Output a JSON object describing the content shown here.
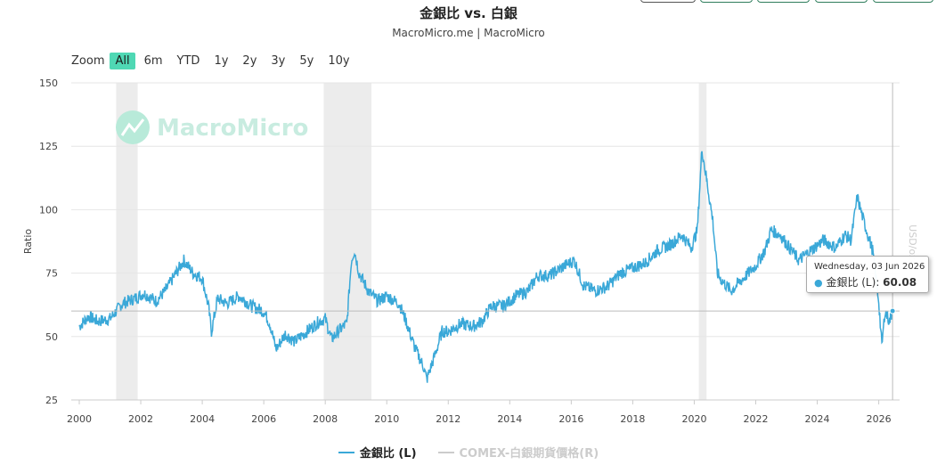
{
  "chart_data": {
    "type": "line",
    "title": "金銀比 vs. 白銀",
    "subtitle": "MacroMicro.me | MacroMicro",
    "ylabel": "Ratio",
    "ylabel_right": "USD/oz",
    "ylim": [
      25,
      150
    ],
    "xlim": [
      2000,
      2026.6
    ],
    "yticks": [
      "25",
      "50",
      "75",
      "100",
      "125",
      "150"
    ],
    "xticks": [
      "2000",
      "2002",
      "2004",
      "2006",
      "2008",
      "2010",
      "2012",
      "2014",
      "2016",
      "2018",
      "2020",
      "2022",
      "2024",
      "2026"
    ],
    "shaded_periods": [
      [
        2001.2,
        2001.9
      ],
      [
        2007.95,
        2009.5
      ],
      [
        2020.15,
        2020.4
      ]
    ],
    "series": [
      {
        "name": "金銀比 (L)",
        "color": "#3aa8d8",
        "points": [
          [
            2000.0,
            54
          ],
          [
            2000.3,
            58
          ],
          [
            2000.6,
            56
          ],
          [
            2001.0,
            57
          ],
          [
            2001.4,
            63
          ],
          [
            2001.8,
            65
          ],
          [
            2002.1,
            67
          ],
          [
            2002.5,
            64
          ],
          [
            2002.8,
            68
          ],
          [
            2003.1,
            74
          ],
          [
            2003.4,
            80
          ],
          [
            2003.7,
            75
          ],
          [
            2004.0,
            73
          ],
          [
            2004.2,
            62
          ],
          [
            2004.3,
            52
          ],
          [
            2004.5,
            65
          ],
          [
            2004.8,
            63
          ],
          [
            2005.2,
            66
          ],
          [
            2005.6,
            62
          ],
          [
            2006.0,
            60
          ],
          [
            2006.2,
            55
          ],
          [
            2006.4,
            45
          ],
          [
            2006.7,
            51
          ],
          [
            2007.0,
            48
          ],
          [
            2007.4,
            52
          ],
          [
            2007.8,
            56
          ],
          [
            2008.0,
            57
          ],
          [
            2008.2,
            49
          ],
          [
            2008.5,
            53
          ],
          [
            2008.7,
            55
          ],
          [
            2008.85,
            80
          ],
          [
            2008.95,
            84
          ],
          [
            2009.1,
            75
          ],
          [
            2009.4,
            68
          ],
          [
            2009.7,
            64
          ],
          [
            2010.0,
            66
          ],
          [
            2010.4,
            63
          ],
          [
            2010.6,
            57
          ],
          [
            2010.9,
            46
          ],
          [
            2011.2,
            38
          ],
          [
            2011.3,
            33
          ],
          [
            2011.6,
            44
          ],
          [
            2011.8,
            52
          ],
          [
            2012.0,
            52
          ],
          [
            2012.4,
            55
          ],
          [
            2012.8,
            54
          ],
          [
            2013.1,
            56
          ],
          [
            2013.4,
            62
          ],
          [
            2013.8,
            62
          ],
          [
            2014.2,
            66
          ],
          [
            2014.6,
            68
          ],
          [
            2014.9,
            74
          ],
          [
            2015.3,
            74
          ],
          [
            2015.8,
            78
          ],
          [
            2016.1,
            80
          ],
          [
            2016.4,
            70
          ],
          [
            2016.8,
            68
          ],
          [
            2017.2,
            70
          ],
          [
            2017.6,
            75
          ],
          [
            2018.0,
            77
          ],
          [
            2018.4,
            79
          ],
          [
            2018.8,
            84
          ],
          [
            2019.2,
            86
          ],
          [
            2019.6,
            90
          ],
          [
            2019.9,
            85
          ],
          [
            2020.1,
            92
          ],
          [
            2020.25,
            124
          ],
          [
            2020.4,
            112
          ],
          [
            2020.6,
            96
          ],
          [
            2020.75,
            75
          ],
          [
            2020.9,
            72
          ],
          [
            2021.2,
            68
          ],
          [
            2021.6,
            73
          ],
          [
            2022.0,
            78
          ],
          [
            2022.3,
            84
          ],
          [
            2022.5,
            92
          ],
          [
            2022.8,
            90
          ],
          [
            2023.1,
            85
          ],
          [
            2023.4,
            80
          ],
          [
            2023.8,
            84
          ],
          [
            2024.2,
            88
          ],
          [
            2024.6,
            85
          ],
          [
            2024.9,
            90
          ],
          [
            2025.1,
            88
          ],
          [
            2025.3,
            105
          ],
          [
            2025.5,
            96
          ],
          [
            2025.8,
            84
          ],
          [
            2026.0,
            64
          ],
          [
            2026.1,
            46
          ],
          [
            2026.2,
            60
          ],
          [
            2026.35,
            56
          ],
          [
            2026.45,
            60.08
          ]
        ]
      },
      {
        "name": "COMEX-白銀期貨價格(R)",
        "color": "#cccccc",
        "points": []
      }
    ],
    "legend": "bottom-center",
    "tooltip": {
      "date": "Wednesday, 03 Jun 2026",
      "series": "金銀比 (L)",
      "value": "60.08"
    }
  },
  "zoom": {
    "label": "Zoom",
    "buttons": [
      "All",
      "6m",
      "YTD",
      "1y",
      "2y",
      "3y",
      "5y",
      "10y"
    ],
    "active": "All"
  },
  "watermark": "MacroMicro",
  "colors": {
    "accent": "#4fd8b4",
    "line": "#3aa8d8",
    "shade": "#ececec"
  }
}
